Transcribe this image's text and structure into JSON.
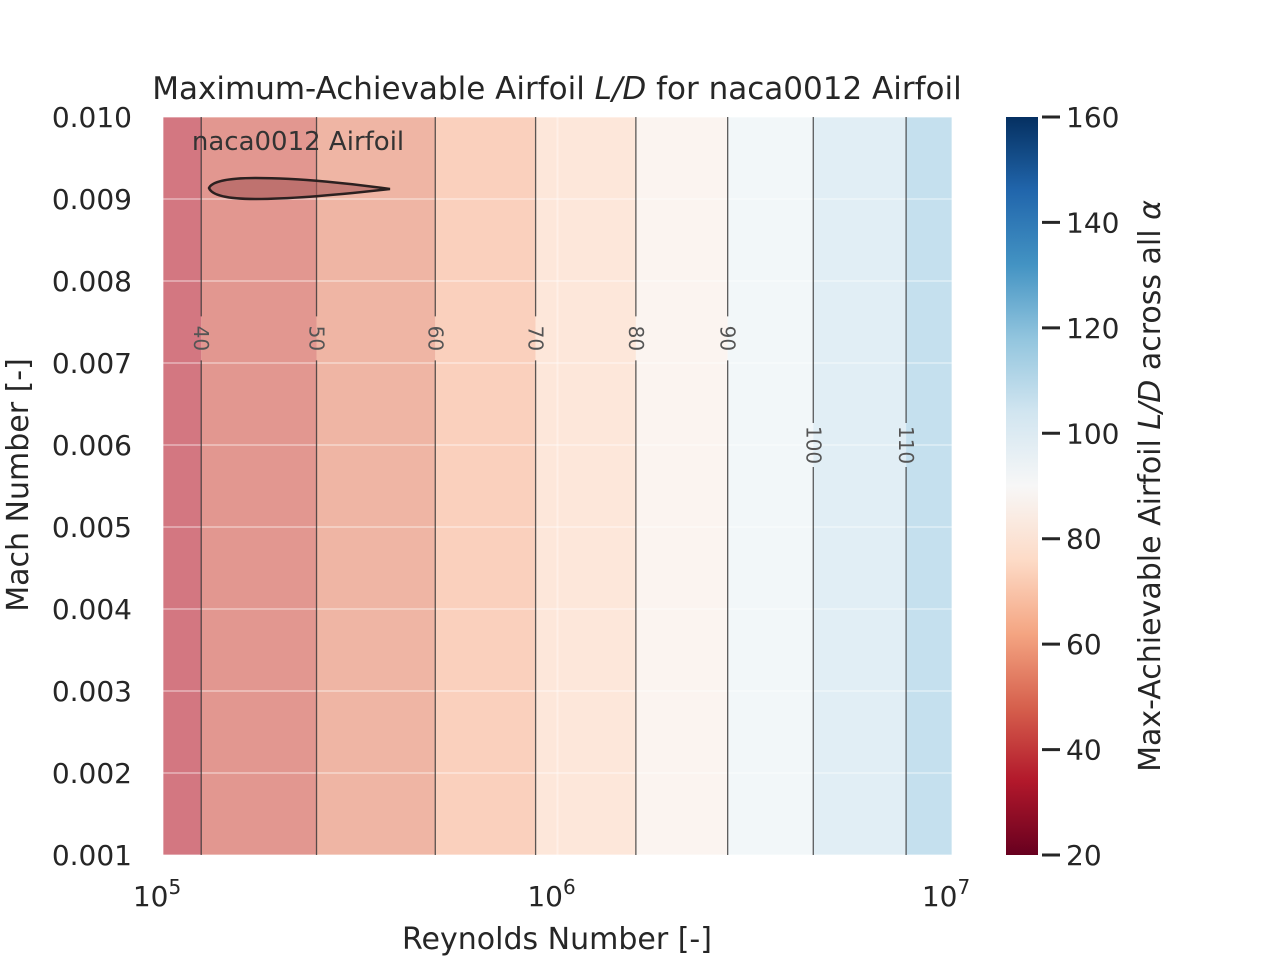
{
  "chart_data": {
    "type": "heatmap",
    "title": "Maximum-Achievable Airfoil L/D for naca0012 Airfoil",
    "title_parts": {
      "prefix": "Maximum-Achievable Airfoil ",
      "ld": "L/D",
      "suffix": " for naca0012 Airfoil"
    },
    "xlabel": "Reynolds Number [-]",
    "ylabel": "Mach Number [-]",
    "x_scale": "log",
    "xlim": [
      100000,
      10000000
    ],
    "ylim": [
      0.001,
      0.01
    ],
    "x_ticks": [
      {
        "value": 100000,
        "base": "10",
        "exp": "5"
      },
      {
        "value": 1000000,
        "base": "10",
        "exp": "6"
      },
      {
        "value": 10000000,
        "base": "10",
        "exp": "7"
      }
    ],
    "y_ticks": [
      "0.001",
      "0.002",
      "0.003",
      "0.004",
      "0.005",
      "0.006",
      "0.007",
      "0.008",
      "0.009",
      "0.010"
    ],
    "grid": true,
    "annotation": "naca0012 Airfoil",
    "contour_bands": [
      {
        "from_re": 100000,
        "to_re": 125000,
        "ld": 35
      },
      {
        "from_re": 125000,
        "to_re": 245000,
        "ld": 45
      },
      {
        "from_re": 245000,
        "to_re": 490000,
        "ld": 55
      },
      {
        "from_re": 490000,
        "to_re": 880000,
        "ld": 65
      },
      {
        "from_re": 880000,
        "to_re": 1580000,
        "ld": 75
      },
      {
        "from_re": 1580000,
        "to_re": 2700000,
        "ld": 85
      },
      {
        "from_re": 2700000,
        "to_re": 4450000,
        "ld": 95
      },
      {
        "from_re": 4450000,
        "to_re": 7650000,
        "ld": 105
      },
      {
        "from_re": 7650000,
        "to_re": 10000000,
        "ld": 115
      }
    ],
    "contour_lines": [
      {
        "level": "40",
        "re": 125000,
        "label_mach": 0.0073
      },
      {
        "level": "50",
        "re": 245000,
        "label_mach": 0.0073
      },
      {
        "level": "60",
        "re": 490000,
        "label_mach": 0.0073
      },
      {
        "level": "70",
        "re": 880000,
        "label_mach": 0.0073
      },
      {
        "level": "80",
        "re": 1580000,
        "label_mach": 0.0073
      },
      {
        "level": "90",
        "re": 2700000,
        "label_mach": 0.0073
      },
      {
        "level": "100",
        "re": 4450000,
        "label_mach": 0.006
      },
      {
        "level": "110",
        "re": 7650000,
        "label_mach": 0.006
      }
    ],
    "colorbar": {
      "label_prefix": "Max-Achievable Airfoil ",
      "label_ld": "L/D",
      "label_suffix": " across all ",
      "label_alpha": "α",
      "range": [
        20,
        160
      ],
      "ticks": [
        "20",
        "40",
        "60",
        "80",
        "100",
        "120",
        "140",
        "160"
      ],
      "colormap": "RdBu",
      "colors": [
        "#67001f",
        "#b2182b",
        "#d6604d",
        "#f4a582",
        "#fddbc7",
        "#f7f7f7",
        "#d1e5f0",
        "#92c5de",
        "#4393c3",
        "#2166ac",
        "#053061"
      ]
    }
  }
}
